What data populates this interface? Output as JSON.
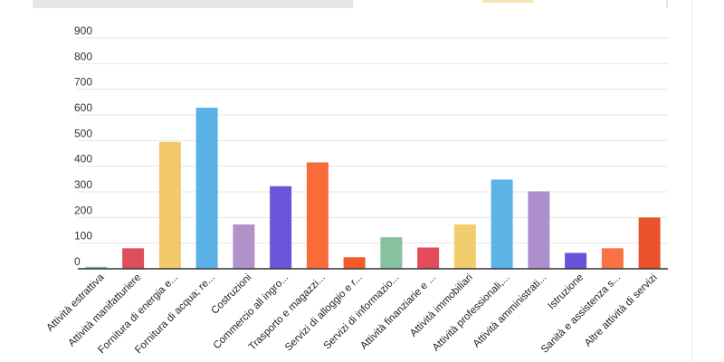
{
  "chart_data": {
    "type": "bar",
    "categories": [
      "Attività estrattiva",
      "Attività manifatturiere",
      "Fornitura di energia e...",
      "Fornitura di acqua; re...",
      "Costruzioni",
      "Commercio all ingro...",
      "Trasporto e magazzi...",
      "Servizi di alloggio e r...",
      "Servizi di informazio...",
      "Attività finanziarie e ...",
      "Attività immobiliari",
      "Attività professionali,...",
      "Attività amministrati...",
      "Istruzione",
      "Sanità e assistenza s...",
      "Altre attività di servizi"
    ],
    "values": [
      8,
      80,
      495,
      628,
      173,
      322,
      415,
      45,
      123,
      83,
      173,
      348,
      302,
      62,
      80,
      200
    ],
    "colors": [
      "#7cc4a2",
      "#dd4f5a",
      "#f1c96b",
      "#5ab1e5",
      "#b293c9",
      "#6a55db",
      "#fa6b39",
      "#f55a2c",
      "#86c1a0",
      "#e24c5b",
      "#f2cd6e",
      "#5db3e6",
      "#ad8fcd",
      "#6a51dc",
      "#fa7143",
      "#e9522b"
    ],
    "yticks": [
      0,
      100,
      200,
      300,
      400,
      500,
      600,
      700,
      800,
      900
    ],
    "ylim": [
      0,
      900
    ],
    "grid": true,
    "legend": "none"
  }
}
